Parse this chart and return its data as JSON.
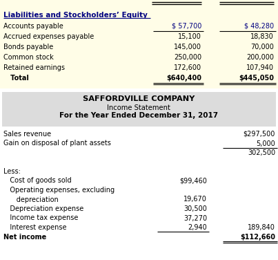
{
  "bg_color": "#FFFDE7",
  "white": "#FFFFFF",
  "gray_header": "#DCDCDC",
  "text_color": "#000000",
  "navy": "#000080",
  "section1_header": "Liabilities and Stockholders’ Equity",
  "liab_rows": [
    {
      "label": "Accounts payable",
      "col1": "$ 57,700",
      "col2": "$ 48,280",
      "u1": true,
      "u2": true,
      "double": false
    },
    {
      "label": "Accrued expenses payable",
      "col1": "15,100",
      "col2": "18,830",
      "u1": false,
      "u2": false,
      "double": false
    },
    {
      "label": "Bonds payable",
      "col1": "145,000",
      "col2": "70,000",
      "u1": false,
      "u2": false,
      "double": false
    },
    {
      "label": "Common stock",
      "col1": "250,000",
      "col2": "200,000",
      "u1": false,
      "u2": false,
      "double": false
    },
    {
      "label": "Retained earnings",
      "col1": "172,600",
      "col2": "107,940",
      "u1": false,
      "u2": false,
      "double": false
    },
    {
      "label": "   Total",
      "col1": "$640,400",
      "col2": "$445,050",
      "u1": true,
      "u2": true,
      "double": true
    }
  ],
  "company_name": "SAFFORDVILLE COMPANY",
  "stmt_title": "Income Statement",
  "stmt_date": "For the Year Ended December 31, 2017",
  "income_rows": [
    {
      "label": "Sales revenue",
      "col1": "",
      "col2": "$297,500",
      "u1": false,
      "u2": false,
      "d2": false
    },
    {
      "label": "Gain on disposal of plant assets",
      "col1": "",
      "col2": "5,000",
      "u1": false,
      "u2": true,
      "d2": false
    },
    {
      "label": "",
      "col1": "",
      "col2": "302,500",
      "u1": false,
      "u2": false,
      "d2": false
    },
    {
      "label": "",
      "col1": "",
      "col2": "",
      "u1": false,
      "u2": false,
      "d2": false
    },
    {
      "label": "Less:",
      "col1": "",
      "col2": "",
      "u1": false,
      "u2": false,
      "d2": false
    },
    {
      "label": "   Cost of goods sold",
      "col1": "$99,460",
      "col2": "",
      "u1": false,
      "u2": false,
      "d2": false
    },
    {
      "label": "   Operating expenses, excluding",
      "col1": "",
      "col2": "",
      "u1": false,
      "u2": false,
      "d2": false
    },
    {
      "label": "      depreciation",
      "col1": "19,670",
      "col2": "",
      "u1": false,
      "u2": false,
      "d2": false
    },
    {
      "label": "   Depreciation expense",
      "col1": "30,500",
      "col2": "",
      "u1": false,
      "u2": false,
      "d2": false
    },
    {
      "label": "   Income tax expense",
      "col1": "37,270",
      "col2": "",
      "u1": false,
      "u2": false,
      "d2": false
    },
    {
      "label": "   Interest expense",
      "col1": "2,940",
      "col2": "189,840",
      "u1": true,
      "u2": false,
      "d2": false
    },
    {
      "label": "Net income",
      "col1": "",
      "col2": "$112,660",
      "u1": false,
      "u2": true,
      "d2": true
    }
  ]
}
